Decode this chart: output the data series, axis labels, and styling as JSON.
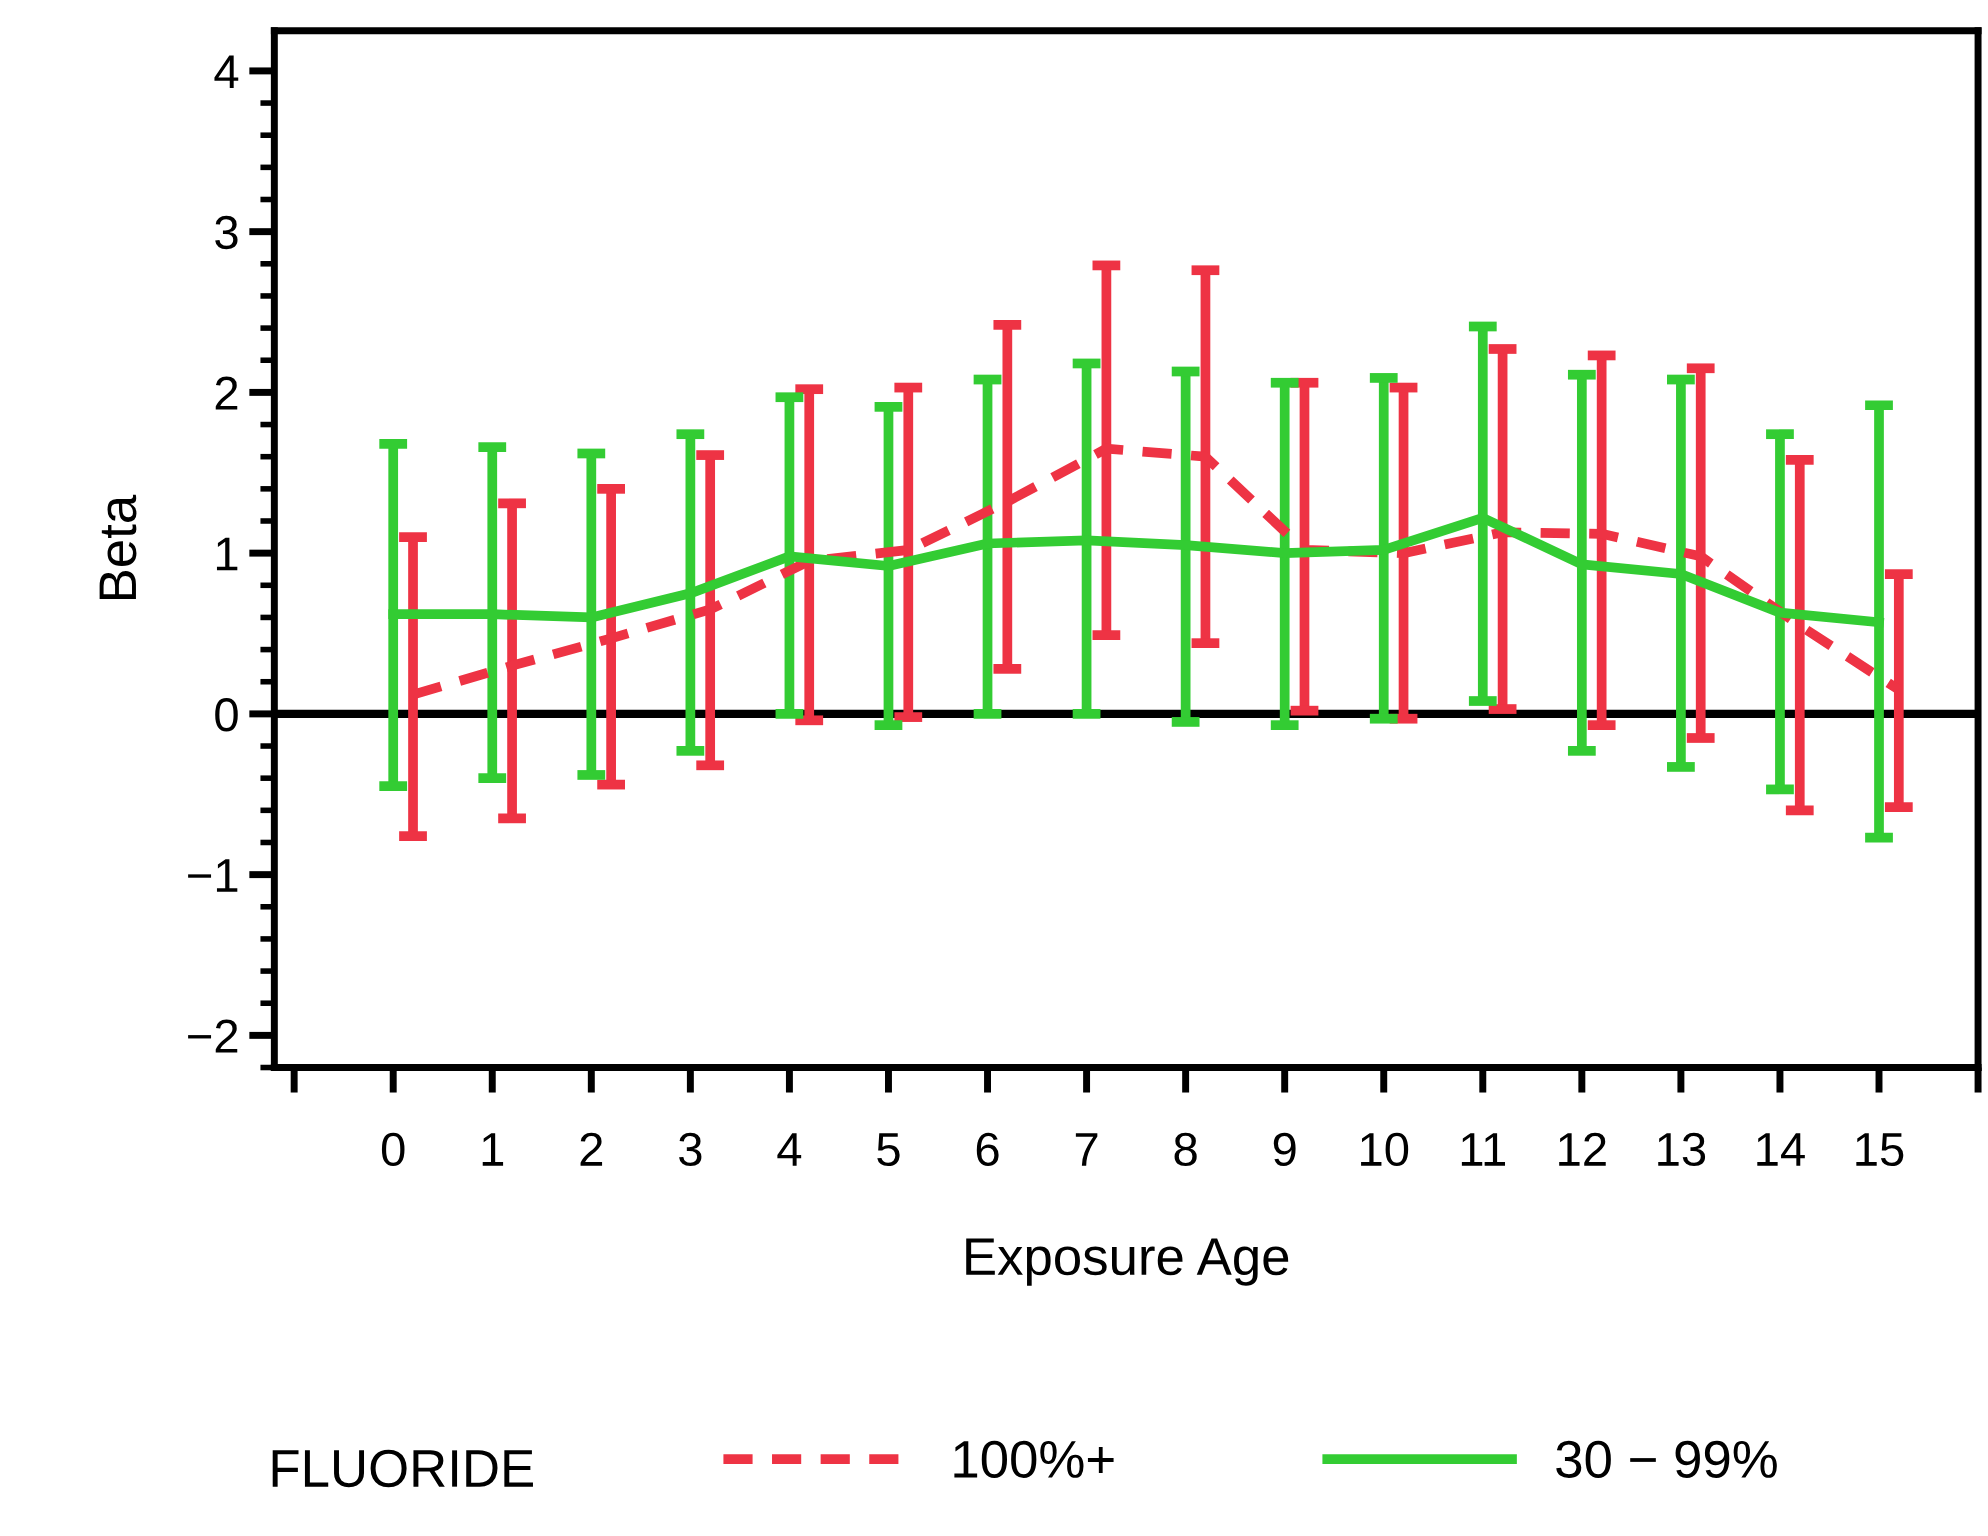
{
  "chart_data": {
    "type": "line",
    "xlabel": "Exposure Age",
    "ylabel": "Beta",
    "legend_title": "FLUORIDE",
    "xlim": [
      -1.2,
      16
    ],
    "xticks": [
      {
        "value": -1,
        "label": null
      },
      0,
      1,
      2,
      3,
      4,
      5,
      6,
      7,
      8,
      9,
      10,
      11,
      12,
      13,
      14,
      15,
      {
        "value": 16,
        "label": null
      }
    ],
    "ylim": [
      -2.2,
      4.25
    ],
    "yticks": [
      {
        "value": -2,
        "label": "−2"
      },
      {
        "value": -1,
        "label": "−1"
      },
      0,
      1,
      2,
      3,
      4
    ],
    "ref_lines": [
      {
        "axis": "y",
        "value": 0,
        "color": "#000000"
      }
    ],
    "legend": "bottom",
    "grid": false,
    "series": [
      {
        "name": "100%+",
        "color": "#ee3344",
        "line_style": "dashed",
        "x": [
          0.2,
          1.2,
          2.2,
          3.2,
          4.2,
          5.2,
          6.2,
          7.2,
          8.2,
          9.2,
          10.2,
          11.2,
          12.2,
          13.2,
          14.2,
          15.2
        ],
        "values": [
          0.12,
          0.3,
          0.47,
          0.65,
          0.95,
          1.02,
          1.32,
          1.65,
          1.6,
          1.02,
          1.0,
          1.13,
          1.12,
          0.98,
          0.55,
          0.15
        ],
        "errors": [
          [
            -0.76,
            1.1
          ],
          [
            -0.65,
            1.31
          ],
          [
            -0.44,
            1.4
          ],
          [
            -0.32,
            1.61
          ],
          [
            -0.04,
            2.02
          ],
          [
            -0.02,
            2.03
          ],
          [
            0.28,
            2.42
          ],
          [
            0.49,
            2.79
          ],
          [
            0.44,
            2.76
          ],
          [
            0.02,
            2.06
          ],
          [
            -0.03,
            2.03
          ],
          [
            0.03,
            2.27
          ],
          [
            -0.07,
            2.23
          ],
          [
            -0.15,
            2.15
          ],
          [
            -0.6,
            1.58
          ],
          [
            -0.58,
            0.87
          ]
        ]
      },
      {
        "name": "30 − 99%",
        "color": "#33cc33",
        "line_style": "solid",
        "x": [
          0,
          1,
          2,
          3,
          4,
          5,
          6,
          7,
          8,
          9,
          10,
          11,
          12,
          13,
          14,
          15
        ],
        "values": [
          0.62,
          0.62,
          0.6,
          0.75,
          0.98,
          0.92,
          1.06,
          1.08,
          1.05,
          1.0,
          1.02,
          1.22,
          0.93,
          0.87,
          0.63,
          0.57
        ],
        "errors": [
          [
            -0.45,
            1.68
          ],
          [
            -0.4,
            1.66
          ],
          [
            -0.38,
            1.62
          ],
          [
            -0.23,
            1.74
          ],
          [
            0.0,
            1.97
          ],
          [
            -0.07,
            1.91
          ],
          [
            0.0,
            2.08
          ],
          [
            0.0,
            2.18
          ],
          [
            -0.05,
            2.13
          ],
          [
            -0.07,
            2.06
          ],
          [
            -0.03,
            2.09
          ],
          [
            0.08,
            2.41
          ],
          [
            -0.23,
            2.11
          ],
          [
            -0.33,
            2.08
          ],
          [
            -0.47,
            1.74
          ],
          [
            -0.77,
            1.92
          ]
        ]
      }
    ]
  }
}
